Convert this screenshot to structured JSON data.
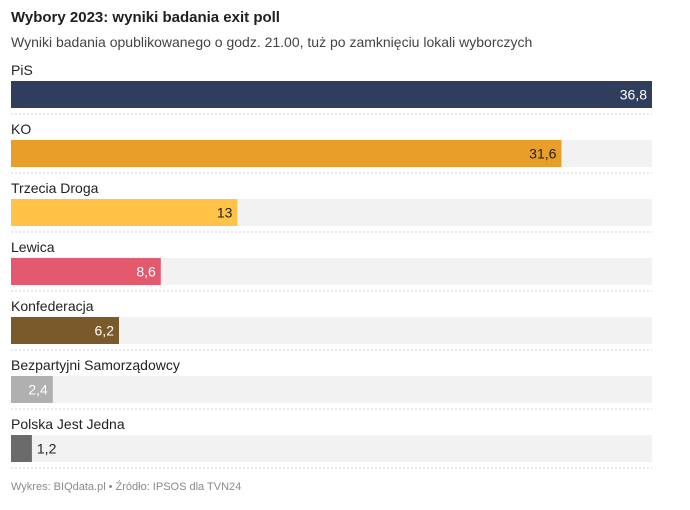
{
  "chart_data": {
    "type": "bar",
    "orientation": "horizontal",
    "title": "Wybory 2023: wyniki badania exit poll",
    "subtitle": "Wyniki badania opublikowanego o godz. 21.00, tuż po zamknięciu lokali wyborczych",
    "categories": [
      "PiS",
      "KO",
      "Trzecia Droga",
      "Lewica",
      "Konfederacja",
      "Bezpartyjni Samorządowcy",
      "Polska Jest Jedna"
    ],
    "values": [
      36.8,
      31.6,
      13,
      8.6,
      6.2,
      2.4,
      1.2
    ],
    "value_labels": [
      "36,8",
      "31,6",
      "13",
      "8,6",
      "6,2",
      "2,4",
      "1,2"
    ],
    "colors": [
      "#2f3e5c",
      "#e89f2a",
      "#ffc447",
      "#e35a6e",
      "#7a5a2b",
      "#b0b0b0",
      "#6b6b6b"
    ],
    "label_colors": [
      "#ffffff",
      "#222222",
      "#222222",
      "#ffffff",
      "#ffffff",
      "#ffffff",
      "#222222"
    ],
    "xlim": [
      0,
      36.8
    ],
    "track_color": "#f2f2f2",
    "grid": false,
    "legend": "none"
  },
  "footer": {
    "chart_by": "Wykres: BIQdata.pl",
    "separator": "•",
    "source": "Źródło: IPSOS dla TVN24"
  }
}
